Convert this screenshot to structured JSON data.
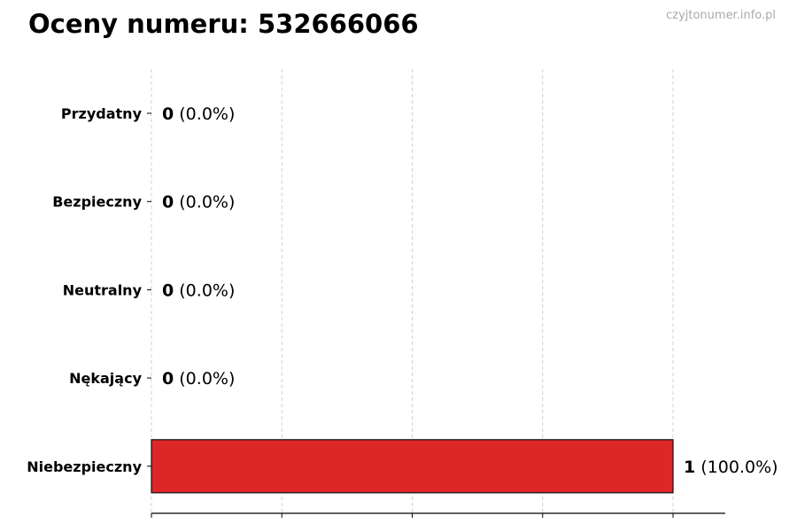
{
  "header": {
    "title": "Oceny numeru: 532666066",
    "watermark": "czyjtonumer.info.pl"
  },
  "chart_data": {
    "type": "bar",
    "orientation": "horizontal",
    "title": "Oceny numeru: 532666066",
    "categories": [
      "Przydatny",
      "Bezpieczny",
      "Neutralny",
      "Nękający",
      "Niebezpieczny"
    ],
    "values": [
      0,
      0,
      0,
      0,
      1
    ],
    "percent_labels": [
      "(0.0%)",
      "(0.0%)",
      "(0.0%)",
      "(0.0%)",
      "(100.0%)"
    ],
    "colors": [
      "#2ca02c",
      "#2ca02c",
      "#888888",
      "#dd2626",
      "#dd2626"
    ],
    "xlim": [
      0,
      1.1
    ],
    "xticks": [
      0,
      0.25,
      0.5,
      0.75,
      1.0
    ],
    "xtick_labels_shown": false,
    "grid": "x-dashed",
    "xlabel": "",
    "ylabel": ""
  }
}
